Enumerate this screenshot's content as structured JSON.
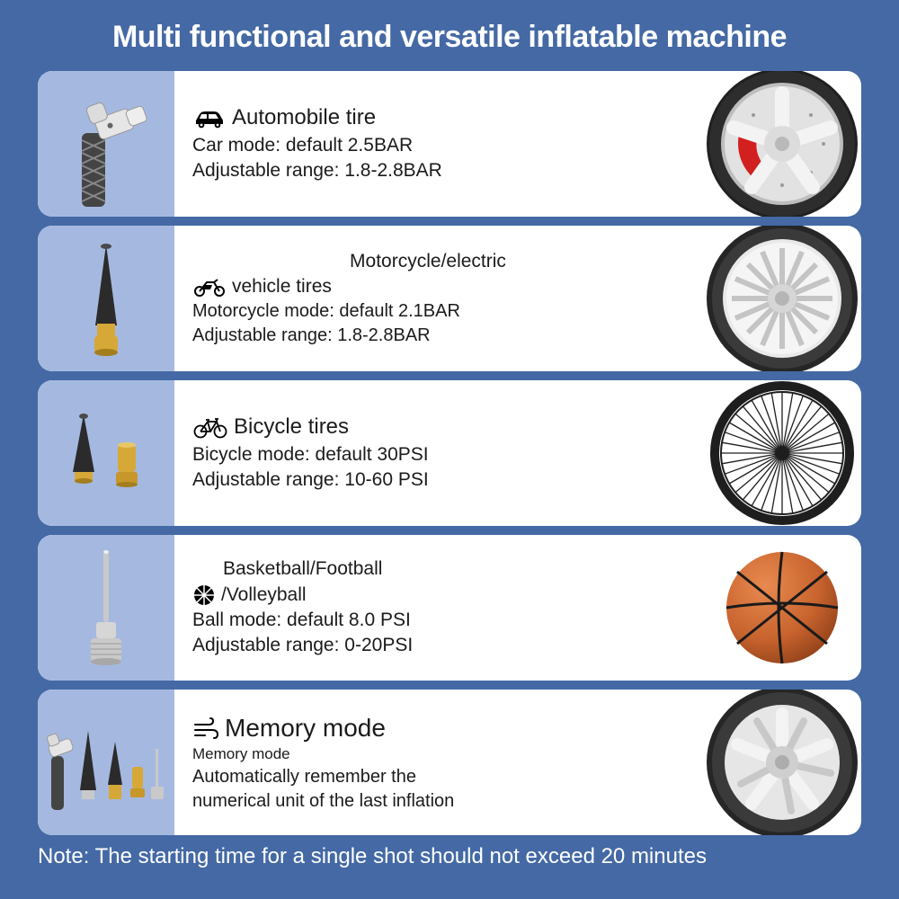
{
  "title": "Multi functional and versatile inflatable machine",
  "note": "Note: The starting time for a single shot should not exceed 20 minutes",
  "colors": {
    "page_bg": "#4469a5",
    "card_bg": "#ffffff",
    "thumb_bg": "#a5b9e0",
    "text": "#1b1b1b",
    "title_text": "#ffffff",
    "tire_dark": "#2d2d2d",
    "rim_silver": "#d8d8d8",
    "rim_silver_light": "#eeeeee",
    "caliper_red": "#d22020",
    "basketball": "#c8632e",
    "basketball_seam": "#1a1a1a",
    "brass": "#d6a837",
    "adapter_black": "#2b2b2b",
    "adapter_silver": "#c9c9c9"
  },
  "cards": [
    {
      "id": "auto",
      "icon": "car",
      "heading": "Automobile tire",
      "line2": "Car mode: default 2.5BAR",
      "line3": "Adjustable range: 1.8-2.8BAR"
    },
    {
      "id": "moto",
      "icon": "motorcycle",
      "heading_top": "Motorcycle/electric",
      "heading_bottom": "vehicle tires",
      "line2": "Motorcycle mode: default 2.1BAR",
      "line3": "Adjustable range: 1.8-2.8BAR"
    },
    {
      "id": "bicycle",
      "icon": "bicycle",
      "heading": "Bicycle tires",
      "line2": "Bicycle mode: default 30PSI",
      "line3": "Adjustable range: 10-60 PSI"
    },
    {
      "id": "ball",
      "icon": "basketball",
      "heading_top": "Basketball/Football",
      "heading_bottom": "/Volleyball",
      "line2": "Ball mode: default 8.0 PSI",
      "line3": "Adjustable range: 0-20PSI"
    },
    {
      "id": "memory",
      "icon": "wind",
      "heading": "Memory mode",
      "line2_small": "Memory mode",
      "line3": "Automatically remember the",
      "line4": "numerical unit of the last inflation"
    }
  ]
}
